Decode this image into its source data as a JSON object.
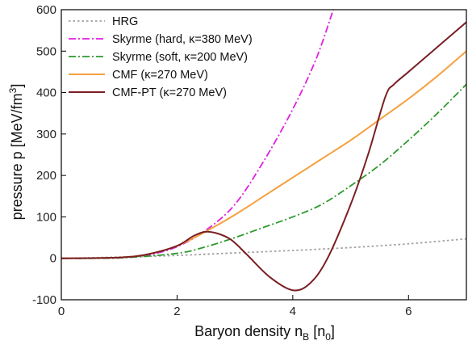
{
  "chart_data": {
    "type": "line",
    "xlabel": {
      "main": "Baryon density n",
      "sub": "B",
      "tail": " [n",
      "sub2": "0",
      "close": "]"
    },
    "ylabel": {
      "main": "pressure p [MeV/fm",
      "sup": "3",
      "close": "]"
    },
    "xlim": [
      0,
      7
    ],
    "ylim": [
      -100,
      600
    ],
    "xticks": [
      0,
      2,
      4,
      6
    ],
    "yticks": [
      -100,
      0,
      100,
      200,
      300,
      400,
      500,
      600
    ],
    "grid": false,
    "legend_position": "top-left",
    "series": [
      {
        "name": "HRG",
        "color": "#a0a0a0",
        "dash": "dot",
        "x": [
          0,
          1,
          2,
          3,
          4,
          5,
          6,
          7
        ],
        "y": [
          0,
          3,
          7,
          13,
          19,
          26,
          35,
          47
        ]
      },
      {
        "name": "Skyrme (hard, κ=380 MeV)",
        "color": "#e020e0",
        "dash": "dashdot",
        "x": [
          0,
          0.5,
          1.0,
          1.5,
          2.0,
          2.5,
          3.0,
          3.5,
          4.0,
          4.4,
          4.7
        ],
        "y": [
          0,
          0.2,
          1,
          8,
          28,
          68,
          130,
          235,
          360,
          480,
          600
        ]
      },
      {
        "name": "Skyrme (soft, κ=200 MeV)",
        "color": "#2e9a2e",
        "dash": "dashdot",
        "x": [
          0,
          1.0,
          2.0,
          2.5,
          3.0,
          3.5,
          4.0,
          4.5,
          5.0,
          5.5,
          6.0,
          6.5,
          7.0
        ],
        "y": [
          0,
          1,
          12,
          28,
          50,
          75,
          100,
          130,
          175,
          225,
          285,
          350,
          420
        ]
      },
      {
        "name": "CMF (κ=270 MeV)",
        "color": "#f5a040",
        "dash": "solid",
        "x": [
          0,
          1.0,
          1.5,
          2.0,
          2.5,
          3.0,
          3.5,
          4.0,
          4.5,
          5.0,
          5.5,
          6.0,
          6.5,
          7.0
        ],
        "y": [
          0,
          2,
          10,
          30,
          65,
          105,
          150,
          195,
          240,
          285,
          335,
          385,
          440,
          500
        ]
      },
      {
        "name": "CMF-PT (κ=270 MeV)",
        "color": "#7a1f24",
        "dash": "solid",
        "x": [
          0,
          1.0,
          1.5,
          2.0,
          2.3,
          2.55,
          2.9,
          3.2,
          3.6,
          4.0,
          4.3,
          4.6,
          5.0,
          5.3,
          5.6,
          5.75,
          6.0,
          6.5,
          7.0
        ],
        "y": [
          0,
          2,
          10,
          30,
          55,
          64,
          48,
          10,
          -45,
          -77,
          -60,
          0,
          130,
          250,
          390,
          420,
          450,
          510,
          570
        ]
      }
    ]
  }
}
